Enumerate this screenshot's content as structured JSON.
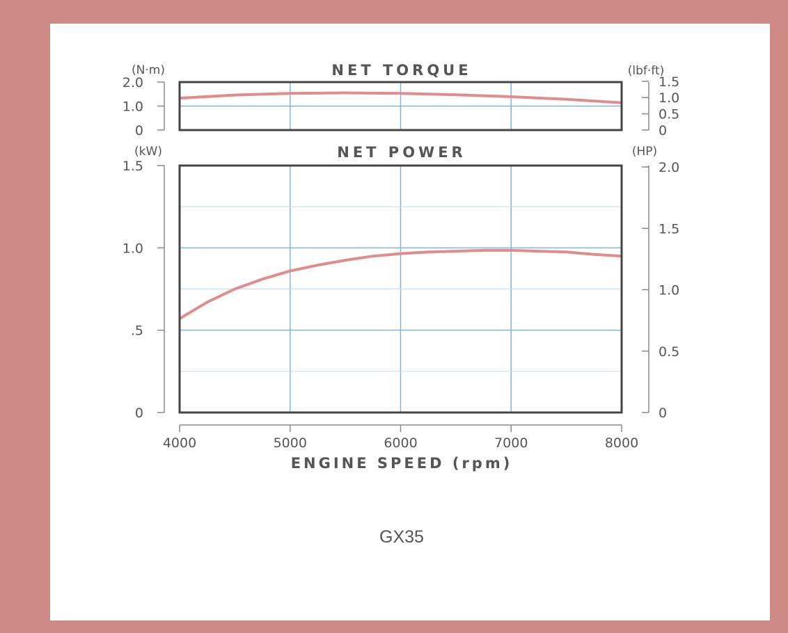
{
  "model": "GX35",
  "colors": {
    "frame": "#d08a86",
    "curve": "#e08c8c",
    "major_grid": "#7fb4dc",
    "minor_grid": "#c8def0",
    "plot_border": "#444444",
    "text": "#555555"
  },
  "chart_data": [
    {
      "type": "line",
      "title": "NET TORQUE",
      "xlabel": "",
      "ylabel": "(N·m)",
      "ylabel_right": "(lbf·ft)",
      "xlim": [
        4000,
        8000
      ],
      "ylim": [
        0,
        2.0
      ],
      "yticks": [
        "2.0",
        "1.0",
        "0"
      ],
      "yticks_right": [
        "1.5",
        "1.0",
        "0.5",
        "0"
      ],
      "grid": true,
      "series": [
        {
          "x": [
            4000,
            4500,
            5000,
            5500,
            6000,
            6500,
            7000,
            7500,
            8000
          ],
          "y": [
            1.33,
            1.46,
            1.53,
            1.55,
            1.53,
            1.47,
            1.39,
            1.28,
            1.14
          ]
        }
      ]
    },
    {
      "type": "line",
      "title": "NET POWER",
      "xlabel": "ENGINE SPEED (rpm)",
      "ylabel": "(kW)",
      "ylabel_right": "(HP)",
      "xlim": [
        4000,
        8000
      ],
      "ylim": [
        0,
        1.5
      ],
      "xticks": [
        "4000",
        "5000",
        "6000",
        "7000",
        "8000"
      ],
      "yticks": [
        "1.5",
        "1.0",
        ".5",
        "0"
      ],
      "yticks_right": [
        "2.0",
        "1.5",
        "1.0",
        "0.5",
        "0"
      ],
      "grid": true,
      "series": [
        {
          "x": [
            4000,
            4250,
            4500,
            4750,
            5000,
            5250,
            5500,
            5750,
            6000,
            6250,
            6500,
            6750,
            7000,
            7250,
            7500,
            7750,
            8000
          ],
          "y": [
            0.57,
            0.67,
            0.75,
            0.81,
            0.86,
            0.895,
            0.925,
            0.95,
            0.965,
            0.975,
            0.98,
            0.985,
            0.985,
            0.98,
            0.975,
            0.96,
            0.95
          ]
        }
      ]
    }
  ]
}
